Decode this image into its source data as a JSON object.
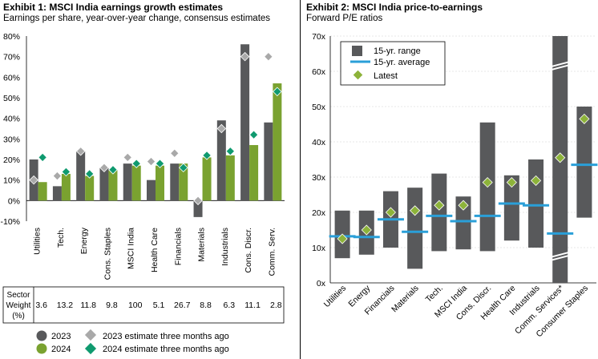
{
  "left": {
    "title": "Exhibit 1: MSCI India earnings growth estimates",
    "subtitle": "Earnings per share, year-over-year change, consensus estimates",
    "weight_header": [
      "Sector",
      "Weight",
      "(%)"
    ],
    "weights": [
      "3.6",
      "13.2",
      "11.8",
      "9.8",
      "100",
      "5.1",
      "26.7",
      "8.8",
      "6.3",
      "11.1",
      "2.8"
    ],
    "legend": {
      "y2023": "2023",
      "y2024": "2024",
      "est2023": "2023 estimate three months ago",
      "est2024": "2024 estimate three months ago"
    }
  },
  "right": {
    "title": "Exhibit 2: MSCI India price-to-earnings",
    "subtitle": "Forward P/E ratios",
    "legend": {
      "range": "15-yr. range",
      "average": "15-yr. average",
      "latest": "Latest"
    }
  },
  "colors": {
    "dark_bar": "#58595b",
    "green_bar": "#7aa230",
    "gray_diamond": "#a9a9a9",
    "teal_diamond": "#0f9a6f",
    "latest_diamond": "#8db33a",
    "avg_line": "#2a9fd8"
  },
  "chart_data": [
    {
      "type": "bar",
      "categories": [
        "Utilities",
        "Tech.",
        "Energy",
        "Cons. Staples",
        "MSCI India",
        "Health Care",
        "Financials",
        "Materials",
        "Industrials",
        "Cons. Discr.",
        "Comm. Serv."
      ],
      "ylim": [
        -10,
        80
      ],
      "yticks": [
        "-10%",
        "0%",
        "10%",
        "20%",
        "30%",
        "40%",
        "50%",
        "60%",
        "70%",
        "80%"
      ],
      "series": [
        {
          "name": "2023",
          "values": [
            20,
            7,
            24,
            16,
            18,
            10,
            18,
            -8,
            39,
            76,
            38
          ]
        },
        {
          "name": "2024",
          "values": [
            9,
            13,
            12,
            15,
            17,
            17,
            18,
            21,
            22,
            27,
            57
          ]
        },
        {
          "name": "2023 estimate three months ago",
          "values": [
            10,
            12,
            24,
            16,
            21,
            19,
            23,
            0,
            35,
            70,
            70
          ]
        },
        {
          "name": "2024 estimate three months ago",
          "values": [
            21,
            14,
            13,
            15,
            18,
            18,
            16,
            22,
            24,
            32,
            53
          ]
        }
      ]
    },
    {
      "type": "bar",
      "categories": [
        "Utilities",
        "Energy",
        "Financials",
        "Materials",
        "Tech.",
        "MSCI India",
        "Cons. Discr.",
        "Health Care",
        "Industrials",
        "Comm. Services*",
        "Consumer Staples"
      ],
      "ylim": [
        0,
        70
      ],
      "yticks": [
        "0x",
        "10x",
        "20x",
        "30x",
        "40x",
        "50x",
        "60x",
        "70x"
      ],
      "series": [
        {
          "name": "15-yr. range",
          "low": [
            7,
            8,
            10,
            4,
            9,
            9.5,
            9,
            12,
            10,
            0,
            18.5
          ],
          "high": [
            20.5,
            20.5,
            26,
            27,
            31,
            24.5,
            45.5,
            30.5,
            35,
            70,
            50
          ]
        },
        {
          "name": "15-yr. average",
          "values": [
            13.2,
            13,
            18,
            14.5,
            19,
            17.5,
            19,
            22.5,
            22,
            14,
            33.5
          ]
        },
        {
          "name": "Latest",
          "values": [
            12.5,
            15,
            20,
            20.5,
            22,
            22,
            28.5,
            28.5,
            29,
            35.5,
            46.5
          ]
        }
      ]
    }
  ]
}
